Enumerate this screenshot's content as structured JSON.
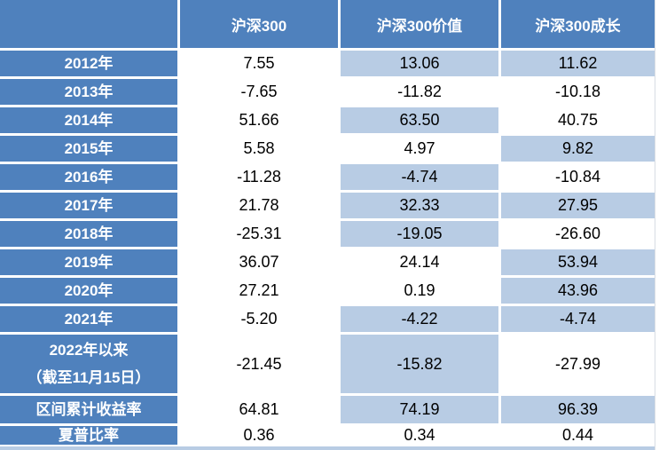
{
  "chart_data": {
    "type": "table",
    "title": "",
    "columns": [
      "",
      "沪深300",
      "沪深300价值",
      "沪深300成长"
    ],
    "rows": [
      {
        "label": "2012年",
        "values": [
          "7.55",
          "13.06",
          "11.62"
        ],
        "highlight": [
          false,
          true,
          true
        ]
      },
      {
        "label": "2013年",
        "values": [
          "-7.65",
          "-11.82",
          "-10.18"
        ],
        "highlight": [
          false,
          false,
          false
        ]
      },
      {
        "label": "2014年",
        "values": [
          "51.66",
          "63.50",
          "40.75"
        ],
        "highlight": [
          false,
          true,
          false
        ]
      },
      {
        "label": "2015年",
        "values": [
          "5.58",
          "4.97",
          "9.82"
        ],
        "highlight": [
          false,
          false,
          true
        ]
      },
      {
        "label": "2016年",
        "values": [
          "-11.28",
          "-4.74",
          "-10.84"
        ],
        "highlight": [
          false,
          true,
          false
        ]
      },
      {
        "label": "2017年",
        "values": [
          "21.78",
          "32.33",
          "27.95"
        ],
        "highlight": [
          false,
          true,
          true
        ]
      },
      {
        "label": "2018年",
        "values": [
          "-25.31",
          "-19.05",
          "-26.60"
        ],
        "highlight": [
          false,
          true,
          false
        ]
      },
      {
        "label": "2019年",
        "values": [
          "36.07",
          "24.14",
          "53.94"
        ],
        "highlight": [
          false,
          false,
          true
        ]
      },
      {
        "label": "2020年",
        "values": [
          "27.21",
          "0.19",
          "43.96"
        ],
        "highlight": [
          false,
          false,
          true
        ]
      },
      {
        "label": "2021年",
        "values": [
          "-5.20",
          "-4.22",
          "-4.74"
        ],
        "highlight": [
          false,
          true,
          true
        ]
      },
      {
        "label": "2022年以来\n（截至11月15日）",
        "values": [
          "-21.45",
          "-15.82",
          "-27.99"
        ],
        "highlight": [
          false,
          true,
          false
        ]
      },
      {
        "label": "区间累计收益率",
        "values": [
          "64.81",
          "74.19",
          "96.39"
        ],
        "highlight": [
          false,
          true,
          true
        ]
      },
      {
        "label": "夏普比率",
        "values": [
          "0.36",
          "0.34",
          "0.44"
        ],
        "highlight": [
          false,
          false,
          false
        ]
      }
    ],
    "legend_position": "none",
    "grid": "white gridlines between cells"
  },
  "colors": {
    "header_bg": "#4F81BD",
    "label_bg": "#4F81BD",
    "header_text": "#FFFFFF",
    "cell_bg": "#FFFFFF",
    "highlight_bg": "#B8CCE4",
    "value_text": "#000000",
    "gridline": "#FFFFFF",
    "strip": "#B8CCE4"
  }
}
